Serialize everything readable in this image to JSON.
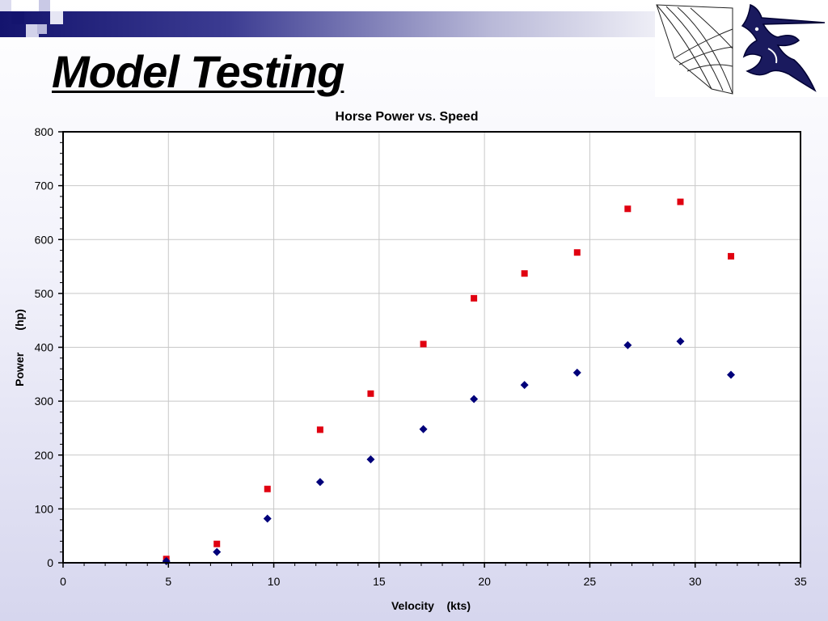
{
  "slide": {
    "title": "Model Testing"
  },
  "logo": {
    "icons": [
      "sail-icon",
      "marlin-icon"
    ]
  },
  "colors": {
    "series1": "#e00010",
    "series2": "#00007a",
    "bar": "#14146e"
  },
  "chart_data": {
    "type": "scatter",
    "title": "Horse Power vs. Speed",
    "xlabel": "Velocity    (kts)",
    "ylabel": "Power       (hp)",
    "xlim": [
      0,
      35
    ],
    "ylim": [
      0,
      800
    ],
    "xticks": [
      0,
      5,
      10,
      15,
      20,
      25,
      30,
      35
    ],
    "yticks": [
      0,
      100,
      200,
      300,
      400,
      500,
      600,
      700,
      800
    ],
    "grid": true,
    "legend": "none",
    "series": [
      {
        "marker": "square",
        "color": "#e00010",
        "x": [
          4.9,
          7.3,
          9.7,
          12.2,
          14.6,
          17.1,
          19.5,
          21.9,
          24.4,
          26.8,
          29.3,
          31.7
        ],
        "y": [
          7,
          35,
          137,
          247,
          314,
          406,
          491,
          537,
          576,
          657,
          670,
          569
        ]
      },
      {
        "marker": "diamond",
        "color": "#00007a",
        "x": [
          4.9,
          7.3,
          9.7,
          12.2,
          14.6,
          17.1,
          19.5,
          21.9,
          24.4,
          26.8,
          29.3,
          31.7
        ],
        "y": [
          3,
          20,
          82,
          150,
          192,
          248,
          304,
          330,
          353,
          404,
          411,
          349
        ]
      }
    ]
  }
}
